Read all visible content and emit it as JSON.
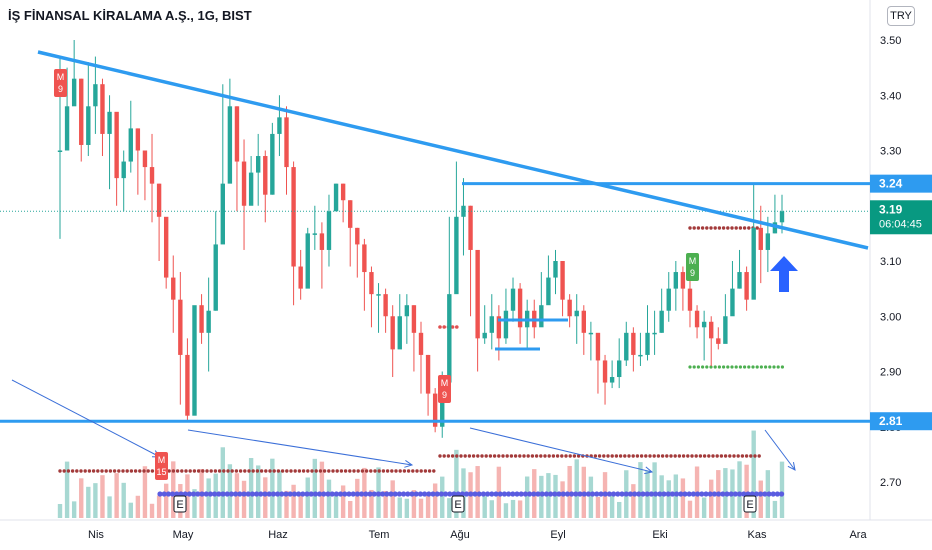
{
  "header": {
    "symbol": "İŞ FİNANSAL KİRALAMA A.Ş., 1G, BIST",
    "currency_button": "TRY"
  },
  "colors": {
    "up": "#26a69a",
    "down": "#ef5350",
    "trend": "#2e9bf0",
    "arrow": "#2962ff",
    "dots_red": "#a33a3a",
    "dots_green": "#4caf50",
    "dots_blue": "#5a5ce0",
    "volume_up": "#a7d8d2",
    "volume_down": "#f5b4b2"
  },
  "chart_data": {
    "type": "candlestick",
    "x_ticks": [
      "Nis",
      "May",
      "Haz",
      "Tem",
      "Ağu",
      "Eyl",
      "Eki",
      "Kas",
      "Ara"
    ],
    "y_ticks": [
      "3.50",
      "3.40",
      "3.30",
      "3.20",
      "3.10",
      "3.00",
      "2.90",
      "2.80",
      "2.70"
    ],
    "ylim": [
      2.64,
      3.55
    ],
    "price_labels": {
      "resistance": "3.24",
      "last": "3.19",
      "countdown": "06:04:45",
      "support": "2.81"
    },
    "levels": {
      "resistance": 3.24,
      "support": 2.81,
      "last": 3.19
    },
    "candles": [
      [
        3.3,
        3.47,
        3.14
      ],
      [
        3.38,
        3.45,
        3.32
      ],
      [
        3.43,
        3.5,
        3.39
      ],
      [
        3.31,
        3.43,
        3.28
      ],
      [
        3.38,
        3.46,
        3.29
      ],
      [
        3.42,
        3.47,
        3.33
      ],
      [
        3.33,
        3.43,
        3.29
      ],
      [
        3.37,
        3.4,
        3.23
      ],
      [
        3.25,
        3.36,
        3.2
      ],
      [
        3.28,
        3.3,
        3.19
      ],
      [
        3.34,
        3.39,
        3.26
      ],
      [
        3.3,
        3.34,
        3.22
      ],
      [
        3.27,
        3.3,
        3.21
      ],
      [
        3.24,
        3.33,
        3.17
      ],
      [
        3.18,
        3.24,
        3.1
      ],
      [
        3.07,
        3.17,
        3.05
      ],
      [
        3.03,
        3.11,
        2.97
      ],
      [
        2.93,
        3.08,
        2.84
      ],
      [
        2.82,
        2.96,
        2.81
      ],
      [
        3.02,
        2.98,
        2.86
      ],
      [
        2.97,
        3.04,
        2.95
      ],
      [
        3.01,
        3.07,
        2.9
      ],
      [
        3.13,
        3.19,
        3.01
      ],
      [
        3.24,
        3.42,
        3.17
      ],
      [
        3.38,
        3.43,
        3.33
      ],
      [
        3.28,
        3.38,
        3.19
      ],
      [
        3.2,
        3.32,
        3.12
      ],
      [
        3.26,
        3.29,
        3.22
      ],
      [
        3.29,
        3.33,
        3.2
      ],
      [
        3.22,
        3.3,
        3.17
      ],
      [
        3.33,
        3.35,
        3.22
      ],
      [
        3.36,
        3.4,
        3.29
      ],
      [
        3.27,
        3.38,
        3.22
      ],
      [
        3.09,
        3.28,
        3.02
      ],
      [
        3.05,
        3.12,
        3.03
      ],
      [
        3.15,
        3.16,
        3.07
      ],
      [
        3.15,
        3.2,
        3.12
      ],
      [
        3.12,
        3.17,
        3.05
      ],
      [
        3.19,
        3.22,
        3.09
      ],
      [
        3.24,
        3.24,
        3.19
      ],
      [
        3.21,
        3.24,
        3.17
      ],
      [
        3.16,
        3.21,
        3.09
      ],
      [
        3.13,
        3.16,
        3.07
      ],
      [
        3.08,
        3.14,
        3.01
      ],
      [
        3.04,
        3.09,
        2.98
      ],
      [
        3.04,
        3.06,
        2.97
      ],
      [
        3.0,
        3.05,
        2.97
      ],
      [
        2.94,
        3.02,
        2.89
      ],
      [
        3.0,
        3.04,
        2.96
      ],
      [
        3.02,
        3.04,
        2.95
      ],
      [
        2.97,
        3.02,
        2.9
      ],
      [
        2.93,
        2.99,
        2.86
      ],
      [
        2.86,
        2.93,
        2.82
      ],
      [
        2.8,
        2.87,
        2.79
      ],
      [
        2.88,
        2.9,
        2.78
      ],
      [
        3.04,
        3.18,
        2.99
      ],
      [
        3.18,
        3.28,
        3.14
      ],
      [
        3.2,
        3.25,
        3.11
      ],
      [
        3.12,
        3.2,
        3.0
      ],
      [
        2.96,
        3.1,
        2.9
      ],
      [
        2.97,
        3.02,
        2.95
      ],
      [
        3.0,
        3.04,
        2.94
      ],
      [
        2.96,
        3.02,
        2.92
      ],
      [
        3.01,
        3.05,
        2.95
      ],
      [
        3.05,
        3.07,
        2.99
      ],
      [
        2.98,
        3.06,
        2.95
      ],
      [
        3.01,
        3.03,
        2.94
      ],
      [
        2.98,
        3.03,
        2.96
      ],
      [
        3.02,
        3.08,
        2.99
      ],
      [
        3.07,
        3.11,
        3.03
      ],
      [
        3.1,
        3.12,
        3.04
      ],
      [
        3.03,
        3.1,
        3.0
      ],
      [
        3.0,
        3.04,
        2.98
      ],
      [
        3.01,
        3.04,
        2.95
      ],
      [
        2.97,
        3.02,
        2.93
      ],
      [
        2.97,
        2.99,
        2.92
      ],
      [
        2.92,
        2.96,
        2.86
      ],
      [
        2.88,
        2.93,
        2.84
      ],
      [
        2.89,
        2.92,
        2.87
      ],
      [
        2.92,
        2.96,
        2.87
      ],
      [
        2.97,
        2.99,
        2.91
      ],
      [
        2.93,
        2.98,
        2.9
      ],
      [
        2.93,
        2.97,
        2.91
      ],
      [
        2.97,
        3.02,
        2.92
      ],
      [
        2.97,
        3.01,
        2.93
      ],
      [
        3.01,
        3.05,
        2.97
      ],
      [
        3.05,
        3.08,
        2.99
      ],
      [
        3.08,
        3.1,
        3.01
      ],
      [
        3.05,
        3.09,
        3.01
      ],
      [
        3.01,
        3.08,
        2.98
      ],
      [
        2.98,
        3.02,
        2.96
      ],
      [
        2.99,
        3.01,
        2.92
      ],
      [
        2.96,
        3.0,
        2.91
      ],
      [
        2.95,
        2.98,
        2.94
      ],
      [
        3.0,
        3.04,
        2.96
      ],
      [
        3.05,
        3.1,
        3.02
      ],
      [
        3.08,
        3.12,
        3.05
      ],
      [
        3.03,
        3.09,
        3.01
      ],
      [
        3.16,
        3.24,
        3.12
      ],
      [
        3.12,
        3.2,
        3.06
      ],
      [
        3.15,
        3.18,
        3.08
      ],
      [
        3.17,
        3.22,
        3.15
      ],
      [
        3.19,
        3.22,
        3.15
      ]
    ]
  }
}
